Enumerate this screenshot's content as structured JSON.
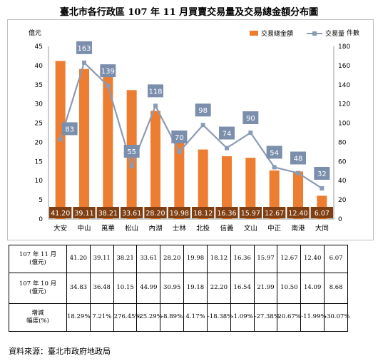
{
  "title": "臺北市各行政區 107 年 11 月買賣交易量及交易總金額分布圖",
  "chart_data": {
    "type": "bar",
    "categories": [
      "大安",
      "中山",
      "萬華",
      "松山",
      "內湖",
      "士林",
      "北投",
      "信義",
      "文山",
      "中正",
      "南港",
      "大同"
    ],
    "series": [
      {
        "name": "交易總金額",
        "type": "bar",
        "axis": "left",
        "values": [
          41.2,
          39.11,
          38.21,
          33.61,
          28.2,
          19.98,
          18.12,
          16.36,
          15.97,
          12.67,
          12.4,
          6.07
        ],
        "labels": [
          "41.20",
          "39.11",
          "38.21",
          "33.61",
          "28.20",
          "19.98",
          "18.12",
          "16.36",
          "15.97",
          "12.67",
          "12.40",
          "6.07"
        ]
      },
      {
        "name": "交易量",
        "type": "line",
        "axis": "right",
        "values": [
          83,
          163,
          139,
          55,
          118,
          70,
          98,
          74,
          90,
          54,
          48,
          32
        ]
      }
    ],
    "y_left": {
      "unit": "億元",
      "min": 0,
      "max": 45,
      "ticks": [
        "0",
        "5",
        "10",
        "15",
        "20",
        "25",
        "30",
        "35",
        "40",
        "45"
      ]
    },
    "y_right": {
      "unit": "件數",
      "min": 0,
      "max": 180,
      "ticks": [
        "0",
        "20",
        "40",
        "60",
        "80",
        "100",
        "120",
        "140",
        "160",
        "180"
      ]
    },
    "grid": false,
    "legend": "top-right",
    "colors": {
      "bar": "#ed7d31",
      "bar_label_bg": "#7f3f12",
      "line": "#8a9bb5",
      "line_label_bg": "#7b8fad"
    }
  },
  "table": {
    "rows": [
      {
        "head": "107 年 11 月\n(億元)",
        "cells": [
          "41.20",
          "39.11",
          "38.21",
          "33.61",
          "28.20",
          "19.98",
          "18.12",
          "16.36",
          "15.97",
          "12.67",
          "12.40",
          "6.07"
        ]
      },
      {
        "head": "107 年 10 月\n(億元)",
        "cells": [
          "34.83",
          "36.48",
          "10.15",
          "44.99",
          "30.95",
          "19.18",
          "22.20",
          "16.54",
          "21.99",
          "10.50",
          "14.09",
          "8.68"
        ]
      },
      {
        "head": "增減\n幅度(%)",
        "cells": [
          "18.29%",
          "7.21%",
          "276.45%",
          "-25.29%",
          "-8.89%",
          "4.17%",
          "-18.38%",
          "-1.09%",
          "-27.38%",
          "20.67%",
          "-11.99%",
          "-30.07%"
        ]
      }
    ]
  },
  "source": "資料來源：臺北市政府地政局"
}
